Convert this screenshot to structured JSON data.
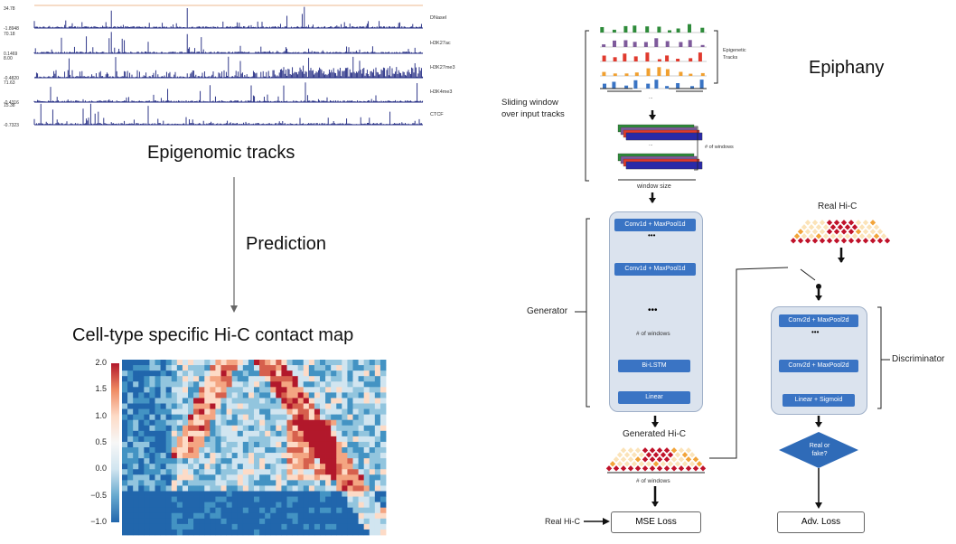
{
  "left": {
    "tracks": [
      {
        "name": "DNaseI",
        "top": "34.78",
        "bottom": "-1.8948"
      },
      {
        "name": "H3K27ac",
        "top": "70.18",
        "bottom": "0.1469"
      },
      {
        "name": "H3K27me3",
        "top": "8.00",
        "bottom": "-0.4820"
      },
      {
        "name": "H3K4me3",
        "top": "71.63",
        "bottom": "-0.4316"
      },
      {
        "name": "CTCF",
        "top": "15.38",
        "bottom": "-0.7323"
      }
    ],
    "tracks_caption": "Epigenomic tracks",
    "prediction_label": "Prediction",
    "hic_title": "Cell-type specific Hi-C contact map",
    "colorbar_ticks": [
      "2.0",
      "1.5",
      "1.0",
      "0.5",
      "0.0",
      "−0.5",
      "−1.0"
    ],
    "colorbar_colors": [
      "#b2182b",
      "#ef8a62",
      "#fddbc7",
      "#f7f7f7",
      "#d1e5f0",
      "#67a9cf",
      "#2166ac"
    ]
  },
  "right": {
    "title": "Epiphany",
    "epigenetic_tracks_label": "Epigenetic\nTracks",
    "sliding_window_label": "Sliding window\nover input tracks",
    "ellipsis": "...",
    "num_windows_label": "# of windows",
    "window_size_label": "window size",
    "generator_label": "Generator",
    "generator_layers": [
      "Conv1d + MaxPool1d",
      "Conv1d + MaxPool1d",
      "Bi-LSTM",
      "Linear"
    ],
    "dots": "•••",
    "gen_num_windows": "# of windows",
    "generated_hic_label": "Generated Hi-C",
    "generated_num_windows": "# of windows",
    "real_hic_top_label": "Real Hi-C",
    "discriminator_label": "Discriminator",
    "discriminator_layers": [
      "Conv2d + MaxPool2d",
      "Conv2d + MaxPool2d",
      "Linear + Sigmoid"
    ],
    "decision_label": "Real or\nfake?",
    "real_hic_bottom_label": "Real Hi-C",
    "mse_loss": "MSE Loss",
    "adv_loss": "Adv. Loss",
    "colors": {
      "block": "#3a74c4",
      "panel": "#dbe3ee",
      "diamond": "#2f6bb8",
      "hic_red": "#c0122a",
      "hic_orange": "#f2a43a",
      "hic_cream": "#fbe3b8"
    }
  }
}
